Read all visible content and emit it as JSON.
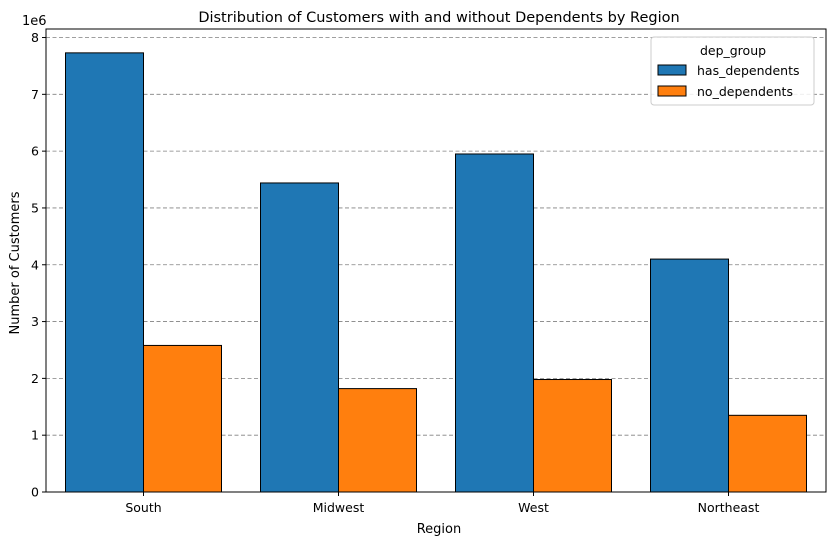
{
  "chart_data": {
    "type": "bar",
    "title": "Distribution of Customers with and without Dependents by Region",
    "xlabel": "Region",
    "ylabel": "Number of Customers",
    "y_offset_label": "1e6",
    "categories": [
      "South",
      "Midwest",
      "West",
      "Northeast"
    ],
    "series": [
      {
        "name": "has_dependents",
        "color": "#1f77b4",
        "values": [
          7730000,
          5440000,
          5950000,
          4100000
        ]
      },
      {
        "name": "no_dependents",
        "color": "#ff7f0e",
        "values": [
          2580000,
          1820000,
          1980000,
          1350000
        ]
      }
    ],
    "ylim": [
      0,
      8150000
    ],
    "yticks": [
      0,
      1000000,
      2000000,
      3000000,
      4000000,
      5000000,
      6000000,
      7000000,
      8000000
    ],
    "ytick_labels": [
      "0",
      "1",
      "2",
      "3",
      "4",
      "5",
      "6",
      "7",
      "8"
    ],
    "grid": "y-dashed",
    "legend": {
      "title": "dep_group",
      "placement": "top-right"
    }
  }
}
